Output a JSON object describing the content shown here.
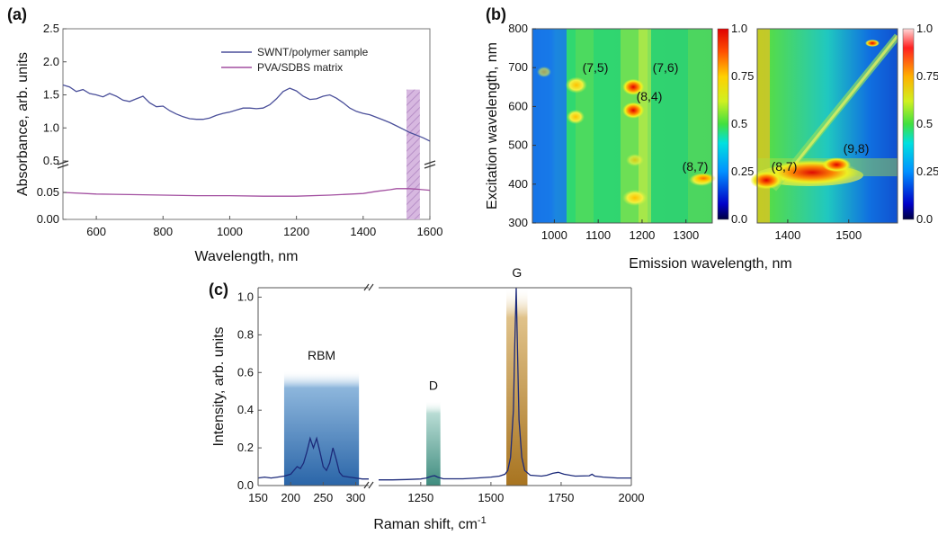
{
  "panels": {
    "a": {
      "letter": "(a)"
    },
    "b": {
      "letter": "(b)"
    },
    "c": {
      "letter": "(c)"
    }
  },
  "chart_data": [
    {
      "id": "a",
      "type": "line",
      "xlabel": "Wavelength, nm",
      "ylabel": "Absorbance, arb. units",
      "xlim": [
        500,
        1600
      ],
      "x_ticks": [
        600,
        800,
        1000,
        1200,
        1400,
        1600
      ],
      "y_ticks_upper": [
        "0.5",
        "1.0",
        "1.5",
        "2.0",
        "2.5"
      ],
      "y_ticks_lower": [
        "0.00",
        "0.05"
      ],
      "y_break": "between 0.05 and 0.5",
      "highlight_band_nm": [
        1530,
        1570
      ],
      "highlight_color": "#c9a6d6",
      "series": [
        {
          "name": "SWNT/polymer sample",
          "color": "#4a4f9a",
          "x": [
            500,
            520,
            540,
            560,
            580,
            600,
            620,
            640,
            660,
            680,
            700,
            720,
            740,
            760,
            780,
            800,
            820,
            840,
            860,
            880,
            900,
            920,
            940,
            960,
            980,
            1000,
            1020,
            1040,
            1060,
            1080,
            1100,
            1120,
            1140,
            1160,
            1180,
            1200,
            1220,
            1240,
            1260,
            1280,
            1300,
            1320,
            1340,
            1360,
            1380,
            1400,
            1420,
            1440,
            1460,
            1480,
            1500,
            1520,
            1540,
            1560,
            1580,
            1600
          ],
          "y": [
            1.65,
            1.62,
            1.55,
            1.58,
            1.52,
            1.5,
            1.47,
            1.52,
            1.48,
            1.42,
            1.4,
            1.44,
            1.48,
            1.38,
            1.32,
            1.33,
            1.26,
            1.21,
            1.17,
            1.14,
            1.13,
            1.13,
            1.15,
            1.19,
            1.22,
            1.24,
            1.27,
            1.3,
            1.3,
            1.29,
            1.3,
            1.35,
            1.44,
            1.55,
            1.6,
            1.56,
            1.48,
            1.43,
            1.44,
            1.48,
            1.5,
            1.45,
            1.38,
            1.3,
            1.25,
            1.22,
            1.2,
            1.16,
            1.12,
            1.08,
            1.03,
            0.98,
            0.93,
            0.89,
            0.85,
            0.8
          ]
        },
        {
          "name": "PVA/SDBS matrix",
          "color": "#a24fa0",
          "x": [
            500,
            600,
            700,
            800,
            900,
            1000,
            1100,
            1200,
            1300,
            1400,
            1440,
            1480,
            1500,
            1540,
            1560,
            1580,
            1600
          ],
          "y": [
            0.05,
            0.047,
            0.046,
            0.045,
            0.044,
            0.044,
            0.043,
            0.043,
            0.045,
            0.048,
            0.052,
            0.055,
            0.057,
            0.057,
            0.056,
            0.055,
            0.054
          ]
        }
      ]
    },
    {
      "id": "b",
      "type": "heatmap",
      "xlabel": "Emission wavelength, nm",
      "ylabel": "Excitation wavelength, nm",
      "ylim": [
        300,
        800
      ],
      "y_ticks": [
        300,
        400,
        500,
        600,
        700,
        800
      ],
      "left_map": {
        "xlim": [
          950,
          1360
        ],
        "x_ticks": [
          1000,
          1100,
          1200,
          1300
        ],
        "peaks": [
          {
            "label": "(7,5)",
            "x": 1050,
            "y": 655
          },
          {
            "label": "(7,6)",
            "x": 1180,
            "y": 650
          },
          {
            "label": "(8,4)",
            "x": 1180,
            "y": 590
          },
          {
            "label": "(8,7)",
            "x": 1340,
            "y": 415
          }
        ],
        "colorbar_ticks": [
          "0.0",
          "0.25",
          "0.5",
          "0.75",
          "1.0"
        ]
      },
      "right_map": {
        "xlim": [
          1350,
          1580
        ],
        "x_ticks": [
          1400,
          1500
        ],
        "peaks": [
          {
            "label": "(8,7)",
            "x": 1365,
            "y": 410
          },
          {
            "label": "(9,8)",
            "x": 1480,
            "y": 450
          }
        ],
        "colorbar_ticks": [
          "0.0",
          "0.25",
          "0.5",
          "0.75",
          "1.0"
        ]
      }
    },
    {
      "id": "c",
      "type": "line",
      "xlabel_main": "Raman shift, cm",
      "xlabel_sup": "-1",
      "ylabel": "Intensity, arb. units",
      "ylim": [
        0,
        1.05
      ],
      "y_ticks": [
        "0.0",
        "0.2",
        "0.4",
        "0.6",
        "0.8",
        "1.0"
      ],
      "segment1": {
        "xlim": [
          150,
          320
        ],
        "x_ticks": [
          "150",
          "200",
          "250",
          "300"
        ]
      },
      "segment2": {
        "xlim": [
          1100,
          2000
        ],
        "x_ticks": [
          "1250",
          "1500",
          "1750",
          "2000"
        ]
      },
      "bands": [
        {
          "label": "RBM",
          "range": [
            190,
            305
          ],
          "top": 0.61,
          "color": "#2f6fb0"
        },
        {
          "label": "D",
          "range": [
            1270,
            1320
          ],
          "top": 0.45,
          "color": "#4a9a8a"
        },
        {
          "label": "G",
          "range": [
            1555,
            1630
          ],
          "top": 1.05,
          "color": "#b07a20"
        }
      ],
      "series": [
        {
          "name": "",
          "color": "#1c2a7a",
          "seg1": {
            "x": [
              150,
              160,
              170,
              180,
              190,
              200,
              205,
              210,
              215,
              220,
              225,
              230,
              235,
              240,
              245,
              250,
              255,
              260,
              265,
              270,
              275,
              280,
              290,
              300,
              310,
              320
            ],
            "y": [
              0.04,
              0.045,
              0.04,
              0.045,
              0.05,
              0.06,
              0.08,
              0.1,
              0.09,
              0.12,
              0.18,
              0.25,
              0.2,
              0.25,
              0.18,
              0.1,
              0.08,
              0.12,
              0.2,
              0.14,
              0.07,
              0.05,
              0.045,
              0.04,
              0.035,
              0.035
            ]
          },
          "seg2": {
            "x": [
              1100,
              1150,
              1200,
              1250,
              1270,
              1290,
              1300,
              1310,
              1330,
              1400,
              1450,
              1500,
              1530,
              1550,
              1560,
              1570,
              1580,
              1585,
              1590,
              1595,
              1600,
              1610,
              1620,
              1640,
              1680,
              1700,
              1720,
              1740,
              1760,
              1800,
              1850,
              1860,
              1870,
              1900,
              1950,
              2000
            ],
            "y": [
              0.03,
              0.03,
              0.032,
              0.035,
              0.04,
              0.05,
              0.052,
              0.045,
              0.036,
              0.036,
              0.04,
              0.045,
              0.05,
              0.06,
              0.08,
              0.15,
              0.4,
              0.75,
              1.05,
              0.7,
              0.35,
              0.15,
              0.08,
              0.055,
              0.05,
              0.055,
              0.065,
              0.07,
              0.06,
              0.05,
              0.052,
              0.06,
              0.05,
              0.045,
              0.04,
              0.04
            ]
          }
        }
      ]
    }
  ]
}
